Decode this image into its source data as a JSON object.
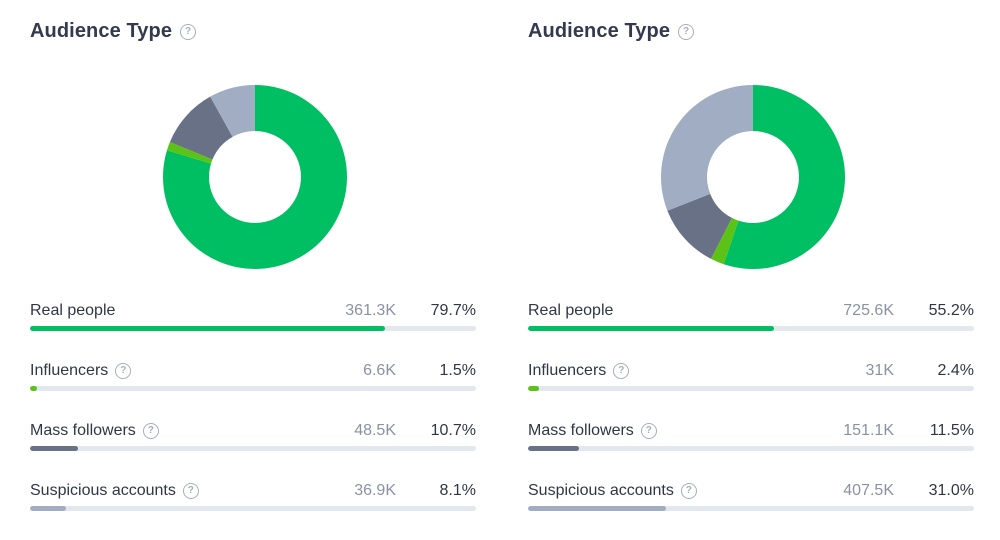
{
  "colors": {
    "real": "#00bf63",
    "influencers": "#5cc316",
    "mass": "#687186",
    "suspicious": "#a0adc2"
  },
  "chart_data": [
    {
      "type": "pie",
      "title": "Audience Type",
      "categories": [
        "Real people",
        "Influencers",
        "Mass followers",
        "Suspicious accounts"
      ],
      "counts": [
        "361.3K",
        "6.6K",
        "48.5K",
        "36.9K"
      ],
      "percent_labels": [
        "79.7%",
        "1.5%",
        "10.7%",
        "8.1%"
      ],
      "values": [
        79.7,
        1.5,
        10.7,
        8.1
      ]
    },
    {
      "type": "pie",
      "title": "Audience Type",
      "categories": [
        "Real people",
        "Influencers",
        "Mass followers",
        "Suspicious accounts"
      ],
      "counts": [
        "725.6K",
        "31K",
        "151.1K",
        "407.5K"
      ],
      "percent_labels": [
        "55.2%",
        "2.4%",
        "11.5%",
        "31.0%"
      ],
      "values": [
        55.2,
        2.4,
        11.5,
        31.0
      ]
    }
  ]
}
